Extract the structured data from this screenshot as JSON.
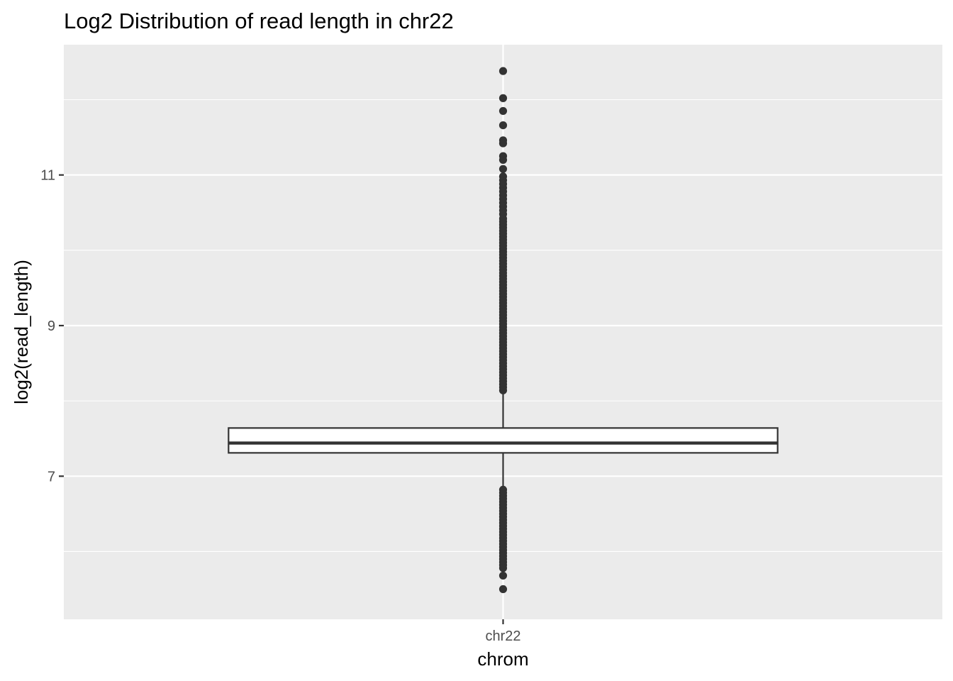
{
  "chart_data": {
    "type": "boxplot",
    "title": "Log2 Distribution of read length in chr22",
    "xlabel": "chrom",
    "ylabel": "log2(read_length)",
    "categories": [
      "chr22"
    ],
    "y_ticks": [
      7,
      9,
      11
    ],
    "y_tick_labels": [
      "7",
      "9",
      "11"
    ],
    "ylim": [
      5.1,
      12.73
    ],
    "grid": true,
    "colors": {
      "panel_background": "#ebebeb",
      "gridline": "#ffffff",
      "box_outline": "#333333",
      "box_fill": "#ffffff",
      "outlier": "#333333",
      "tick_mark": "#333333"
    },
    "boxes": [
      {
        "category": "chr22",
        "lower_whisker": 6.85,
        "q1": 7.31,
        "median": 7.44,
        "q3": 7.64,
        "upper_whisker": 8.12,
        "outliers_high": [
          12.38,
          12.02,
          11.85,
          11.66,
          11.46,
          11.42,
          11.25,
          11.2,
          11.08,
          10.98,
          10.93,
          10.88,
          10.83,
          10.78,
          10.73,
          10.68,
          10.63,
          10.58,
          10.53,
          10.48,
          10.42,
          10.38,
          10.34,
          10.3,
          10.26,
          10.22,
          10.18,
          10.14,
          10.1,
          10.06,
          10.02,
          9.98,
          9.94,
          9.9,
          9.86,
          9.82,
          9.78,
          9.74,
          9.7,
          9.66,
          9.62,
          9.58,
          9.54,
          9.5,
          9.46,
          9.42,
          9.38,
          9.34,
          9.3,
          9.26,
          9.22,
          9.18,
          9.14,
          9.1,
          9.06,
          9.02,
          8.98,
          8.94,
          8.9,
          8.86,
          8.82,
          8.78,
          8.74,
          8.7,
          8.66,
          8.62,
          8.58,
          8.54,
          8.5,
          8.46,
          8.42,
          8.38,
          8.34,
          8.3,
          8.26,
          8.22,
          8.18,
          8.14
        ],
        "outliers_low": [
          6.82,
          6.78,
          6.74,
          6.7,
          6.66,
          6.62,
          6.58,
          6.54,
          6.5,
          6.46,
          6.42,
          6.38,
          6.34,
          6.3,
          6.26,
          6.22,
          6.18,
          6.14,
          6.1,
          6.06,
          6.02,
          5.98,
          5.94,
          5.9,
          5.86,
          5.82,
          5.78,
          5.68,
          5.5
        ]
      }
    ]
  }
}
